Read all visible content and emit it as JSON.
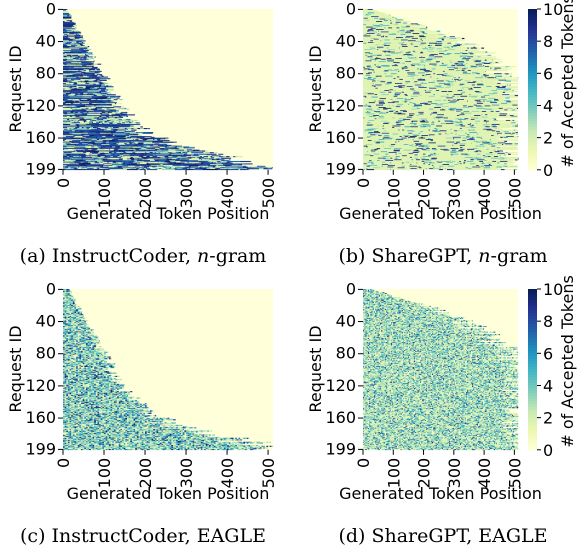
{
  "chart_data": [
    {
      "type": "heatmap",
      "caption": "(a) InstructCoder, n-gram",
      "xlabel": "Generated Token Position",
      "ylabel": "Request ID",
      "x_ticks": [
        "0",
        "100",
        "200",
        "300",
        "400",
        "500"
      ],
      "y_ticks": [
        "0",
        "40",
        "80",
        "120",
        "160",
        "199"
      ],
      "xlim": [
        0,
        512
      ],
      "ylim": [
        0,
        199
      ],
      "n_requests": 200,
      "colorbar": false,
      "pattern": "ngram-code",
      "length_profile": [
        [
          0,
          10
        ],
        [
          40,
          50
        ],
        [
          80,
          95
        ],
        [
          120,
          135
        ],
        [
          150,
          190
        ],
        [
          170,
          270
        ],
        [
          190,
          440
        ],
        [
          199,
          512
        ]
      ]
    },
    {
      "type": "heatmap",
      "caption": "(b) ShareGPT, n-gram",
      "xlabel": "Generated Token Position",
      "ylabel": "Request ID",
      "x_ticks": [
        "0",
        "100",
        "200",
        "300",
        "400",
        "500"
      ],
      "y_ticks": [
        "0",
        "40",
        "80",
        "120",
        "160",
        "199"
      ],
      "xlim": [
        0,
        512
      ],
      "ylim": [
        0,
        199
      ],
      "n_requests": 200,
      "colorbar": true,
      "colorbar_label": "# of Accepted Tokens",
      "colorbar_ticks": [
        "0",
        "2",
        "4",
        "6",
        "8",
        "10"
      ],
      "color_range": [
        0,
        10
      ],
      "pattern": "ngram-chat",
      "length_profile": [
        [
          0,
          30
        ],
        [
          20,
          180
        ],
        [
          40,
          320
        ],
        [
          60,
          420
        ],
        [
          80,
          470
        ],
        [
          90,
          512
        ],
        [
          199,
          512
        ]
      ]
    },
    {
      "type": "heatmap",
      "caption": "(c) InstructCoder, EAGLE",
      "xlabel": "Generated Token Position",
      "ylabel": "Request ID",
      "x_ticks": [
        "0",
        "100",
        "200",
        "300",
        "400",
        "500"
      ],
      "y_ticks": [
        "0",
        "40",
        "80",
        "120",
        "160",
        "199"
      ],
      "xlim": [
        0,
        512
      ],
      "ylim": [
        0,
        199
      ],
      "n_requests": 200,
      "colorbar": false,
      "pattern": "eagle-code",
      "length_profile": [
        [
          0,
          15
        ],
        [
          40,
          55
        ],
        [
          80,
          100
        ],
        [
          120,
          135
        ],
        [
          150,
          200
        ],
        [
          170,
          270
        ],
        [
          190,
          440
        ],
        [
          199,
          512
        ]
      ]
    },
    {
      "type": "heatmap",
      "caption": "(d) ShareGPT, EAGLE",
      "xlabel": "Generated Token Position",
      "ylabel": "Request ID",
      "x_ticks": [
        "0",
        "100",
        "200",
        "300",
        "400",
        "500"
      ],
      "y_ticks": [
        "0",
        "40",
        "80",
        "120",
        "160",
        "199"
      ],
      "xlim": [
        0,
        512
      ],
      "ylim": [
        0,
        199
      ],
      "n_requests": 200,
      "colorbar": true,
      "colorbar_label": "# of Accepted Tokens",
      "colorbar_ticks": [
        "0",
        "2",
        "4",
        "6",
        "8",
        "10"
      ],
      "color_range": [
        0,
        10
      ],
      "pattern": "eagle-chat",
      "length_profile": [
        [
          0,
          30
        ],
        [
          20,
          200
        ],
        [
          40,
          330
        ],
        [
          60,
          420
        ],
        [
          80,
          480
        ],
        [
          90,
          512
        ],
        [
          199,
          512
        ]
      ]
    }
  ]
}
